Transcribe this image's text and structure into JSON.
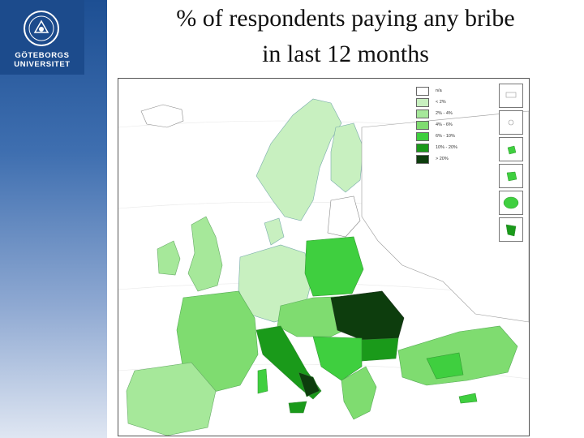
{
  "logo": {
    "line1": "GÖTEBORGS",
    "line2": "UNIVERSITET"
  },
  "title": {
    "line1": "% of respondents paying any bribe",
    "line2": "in last 12 months"
  },
  "legend": {
    "items": [
      {
        "label": "n/a",
        "color": "#ffffff"
      },
      {
        "label": "< 2%",
        "color": "#c8f0c0"
      },
      {
        "label": "2% - 4%",
        "color": "#a6e89a"
      },
      {
        "label": "4% - 6%",
        "color": "#7fdc70"
      },
      {
        "label": "6% - 10%",
        "color": "#3fcf3f"
      },
      {
        "label": "10% - 20%",
        "color": "#1a9a1a"
      },
      {
        "label": "> 20%",
        "color": "#0d3d0d"
      }
    ]
  }
}
